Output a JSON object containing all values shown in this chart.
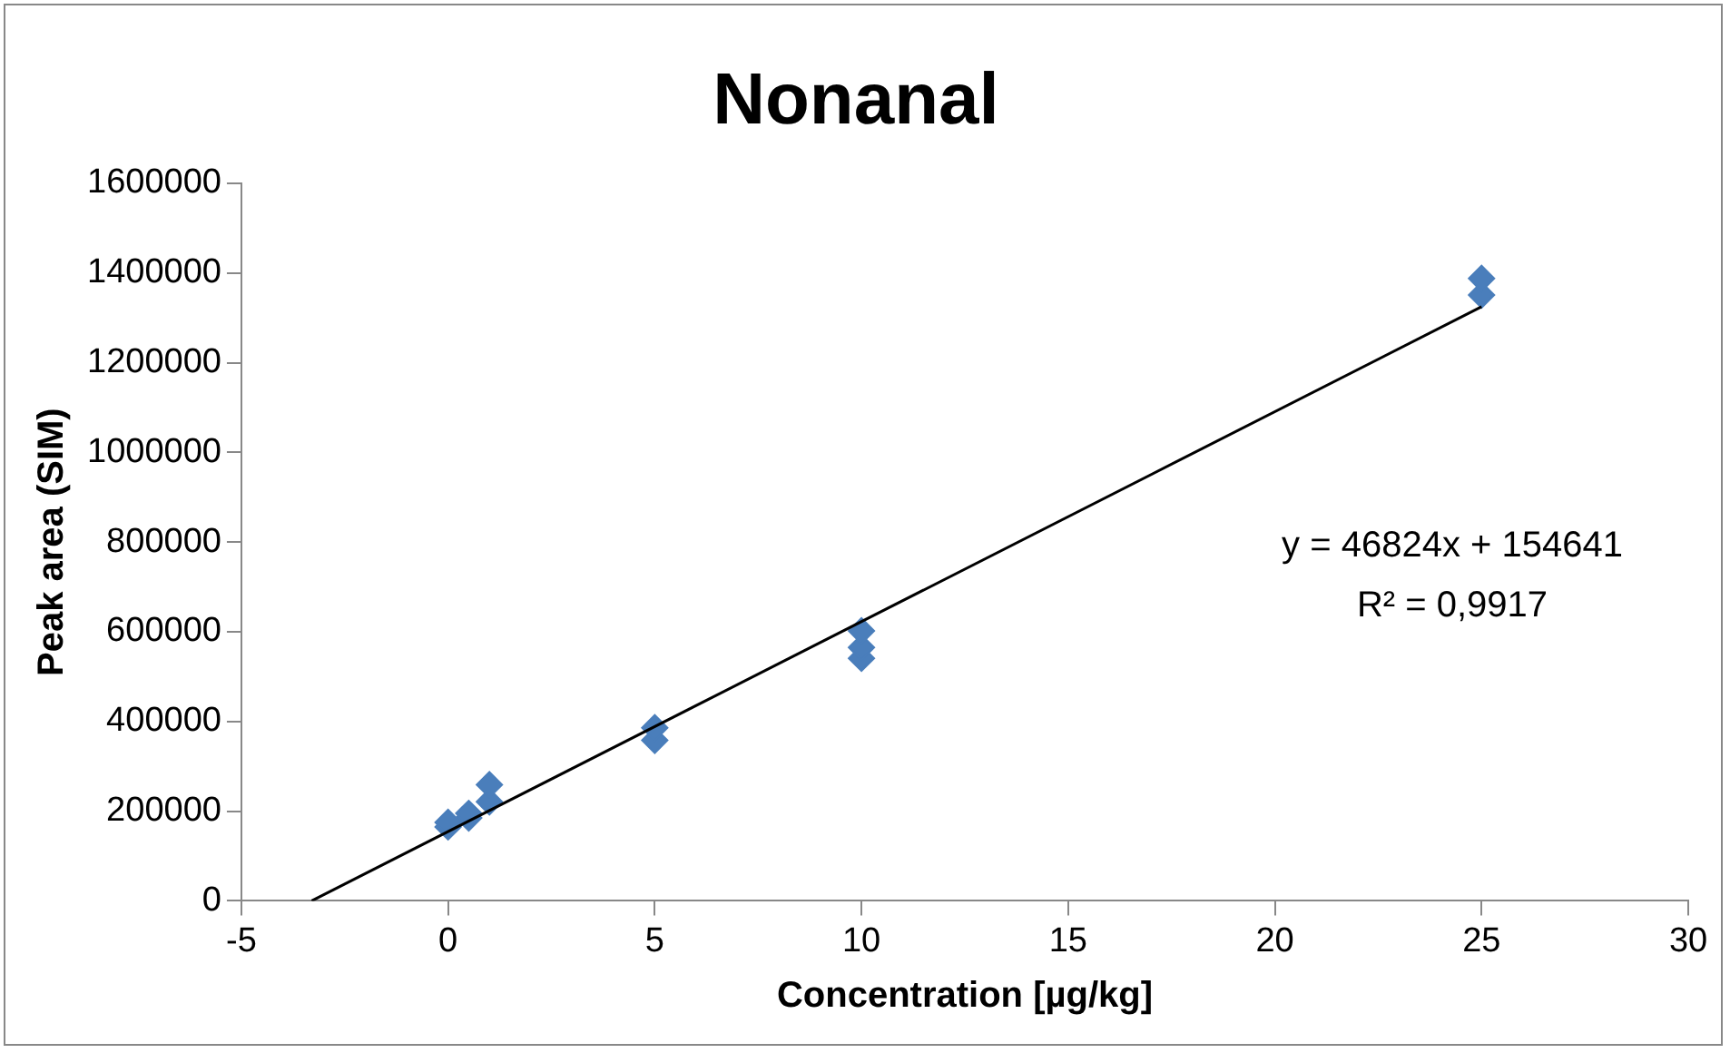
{
  "chart_data": {
    "type": "scatter",
    "title": "Nonanal",
    "xlabel": "Concentration [µg/kg]",
    "ylabel": "Peak area (SIM)",
    "series": [
      {
        "type": "scatter",
        "color": "#4a7ebb",
        "marker": "diamond",
        "x": [
          0,
          0,
          0.5,
          0.5,
          1,
          1,
          5,
          5,
          10,
          10,
          10,
          25,
          25
        ],
        "values": [
          165000,
          175000,
          185000,
          195000,
          221000,
          259000,
          358000,
          386000,
          541000,
          565000,
          602000,
          1351000,
          1388000
        ]
      },
      {
        "type": "line",
        "color": "#000000",
        "marker": "none",
        "line_style": "solid",
        "x": [
          -3.3,
          25
        ],
        "values": [
          0,
          1325000
        ]
      }
    ],
    "xlim": [
      -5,
      30
    ],
    "xticks": [
      -5,
      0,
      5,
      10,
      15,
      20,
      25,
      30
    ],
    "ylim": [
      0,
      1600000
    ],
    "yticks": [
      0,
      200000,
      400000,
      600000,
      800000,
      1000000,
      1200000,
      1400000,
      1600000
    ],
    "grid": false,
    "legend": false,
    "annotations": [
      "y = 46824x + 154641",
      "R² = 0,9917"
    ]
  }
}
